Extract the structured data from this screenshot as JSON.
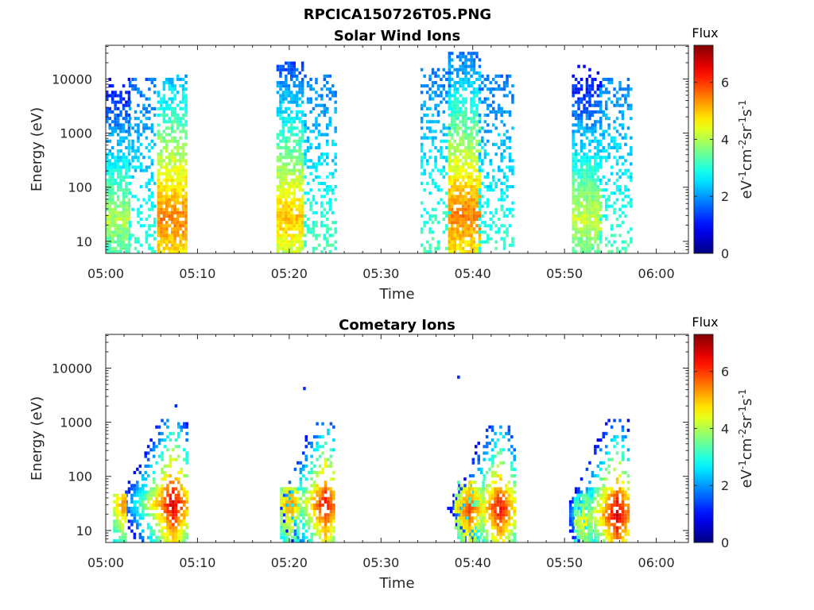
{
  "figure_title": "RPCICA150726T05.PNG",
  "chart_data": [
    {
      "type": "heatmap",
      "title": "Solar Wind Ions",
      "xlabel": "Time",
      "ylabel": "Energy (eV)",
      "x_ticks": [
        "05:00",
        "05:10",
        "05:20",
        "05:30",
        "05:40",
        "05:50",
        "06:00"
      ],
      "x_range_minutes": [
        0,
        63.5
      ],
      "y_scale": "log",
      "y_ticks": [
        "10",
        "100",
        "1000",
        "10000"
      ],
      "y_range_eV": [
        6,
        42000
      ],
      "colorbar": {
        "title": "Flux",
        "ticks": [
          "0",
          "2",
          "4",
          "6"
        ],
        "range": [
          0,
          7.3
        ],
        "colormap": "jet"
      },
      "flux_units_label": {
        "base": "eV",
        "parts": [
          "-1",
          "cm",
          "-2",
          "sr",
          "-1",
          "s",
          "-1"
        ]
      },
      "bursts": [
        {
          "t_start_min": 0.0,
          "t_end_min": 2.5,
          "e_max_eV": 14000,
          "peak_energy_eV": 25,
          "peak_flux": 4.0
        },
        {
          "t_start_min": 2.5,
          "t_end_min": 5.3,
          "e_max_eV": 12000,
          "peak_energy_eV": 800,
          "peak_flux": 2.2,
          "sparse": true
        },
        {
          "t_start_min": 5.6,
          "t_end_min": 8.8,
          "e_max_eV": 12000,
          "peak_energy_eV": 25,
          "peak_flux": 5.5
        },
        {
          "t_start_min": 18.6,
          "t_end_min": 21.6,
          "e_max_eV": 20000,
          "peak_energy_eV": 28,
          "peak_flux": 5.0
        },
        {
          "t_start_min": 21.6,
          "t_end_min": 25.0,
          "e_max_eV": 12000,
          "peak_energy_eV": 1500,
          "peak_flux": 2.2,
          "sparse": true
        },
        {
          "t_start_min": 34.3,
          "t_end_min": 37.3,
          "e_max_eV": 15000,
          "peak_energy_eV": 2000,
          "peak_flux": 2.2,
          "sparse": true
        },
        {
          "t_start_min": 37.3,
          "t_end_min": 40.6,
          "e_max_eV": 32000,
          "peak_energy_eV": 30,
          "peak_flux": 5.5
        },
        {
          "t_start_min": 40.6,
          "t_end_min": 44.2,
          "e_max_eV": 12000,
          "peak_energy_eV": 1000,
          "peak_flux": 2.2,
          "sparse": true
        },
        {
          "t_start_min": 50.8,
          "t_end_min": 53.8,
          "e_max_eV": 20000,
          "peak_energy_eV": 25,
          "peak_flux": 4.2
        },
        {
          "t_start_min": 53.8,
          "t_end_min": 57.1,
          "e_max_eV": 10000,
          "peak_energy_eV": 1500,
          "peak_flux": 2.2,
          "sparse": true
        }
      ]
    },
    {
      "type": "heatmap",
      "title": "Cometary Ions",
      "xlabel": "Time",
      "ylabel": "Energy (eV)",
      "x_ticks": [
        "05:00",
        "05:10",
        "05:20",
        "05:30",
        "05:40",
        "05:50",
        "06:00"
      ],
      "x_range_minutes": [
        0,
        63.5
      ],
      "y_scale": "log",
      "y_ticks": [
        "10",
        "100",
        "1000",
        "10000"
      ],
      "y_range_eV": [
        6,
        42000
      ],
      "colorbar": {
        "title": "Flux",
        "ticks": [
          "0",
          "2",
          "4",
          "6"
        ],
        "range": [
          0,
          7.3
        ],
        "colormap": "jet"
      },
      "flux_units_label": {
        "base": "eV",
        "parts": [
          "-1",
          "cm",
          "-2",
          "sr",
          "-1",
          "s",
          "-1"
        ]
      },
      "bursts": [
        {
          "t_start_min": 0.0,
          "t_end_min": 8.8,
          "e_max_eV": 1200,
          "peak_energy_eV": 30,
          "peak_flux": 6.8,
          "peak_time_min": 7.2
        },
        {
          "t_start_min": 0.8,
          "t_end_min": 2.2,
          "e_max_eV": 50,
          "peak_energy_eV": 30,
          "peak_flux": 5.5,
          "peak_time_min": 1.8
        },
        {
          "t_start_min": 19.0,
          "t_end_min": 25.0,
          "e_max_eV": 1000,
          "peak_energy_eV": 30,
          "peak_flux": 6.5,
          "peak_time_min": 23.8
        },
        {
          "t_start_min": 19.0,
          "t_end_min": 21.0,
          "e_max_eV": 60,
          "peak_energy_eV": 30,
          "peak_flux": 5.5,
          "peak_time_min": 20.0
        },
        {
          "t_start_min": 34.5,
          "t_end_min": 44.5,
          "e_max_eV": 900,
          "peak_energy_eV": 25,
          "peak_flux": 6.5,
          "peak_time_min": 42.8
        },
        {
          "t_start_min": 38.0,
          "t_end_min": 41.0,
          "e_max_eV": 80,
          "peak_energy_eV": 25,
          "peak_flux": 6.0,
          "peak_time_min": 39.5
        },
        {
          "t_start_min": 50.5,
          "t_end_min": 57.0,
          "e_max_eV": 1200,
          "peak_energy_eV": 20,
          "peak_flux": 6.8,
          "peak_time_min": 55.6
        },
        {
          "t_start_min": 51.0,
          "t_end_min": 53.0,
          "e_max_eV": 50,
          "peak_energy_eV": 15,
          "peak_flux": 4.8,
          "peak_time_min": 52.0
        }
      ],
      "isolated_points": [
        {
          "t_min": 7.5,
          "e_eV": 2000,
          "flux": 1.2
        },
        {
          "t_min": 21.5,
          "e_eV": 4200,
          "flux": 1.2
        },
        {
          "t_min": 38.3,
          "e_eV": 6800,
          "flux": 1.2
        }
      ]
    }
  ]
}
